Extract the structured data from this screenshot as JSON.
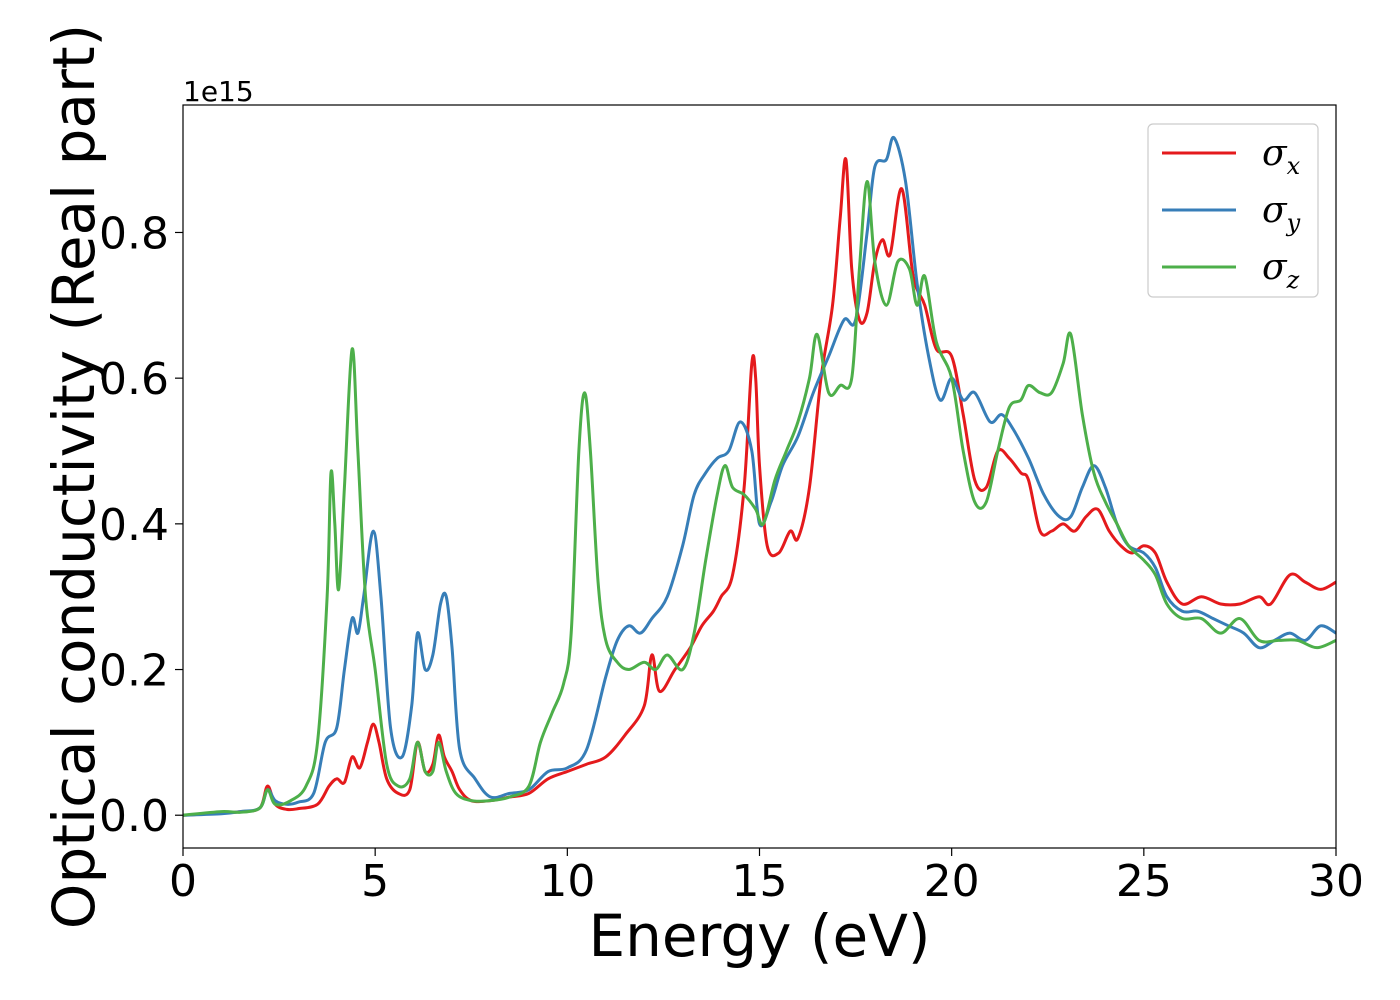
{
  "chart_data": {
    "type": "line",
    "xlabel": "Energy (eV)",
    "ylabel": "Optical conductivity (Real part)",
    "y_offset_label": "1e15",
    "y_multiplier": 1000000000000000.0,
    "xlim": [
      0,
      30
    ],
    "ylim": [
      -0.045,
      0.975
    ],
    "x_ticks": [
      0,
      5,
      10,
      15,
      20,
      25,
      30
    ],
    "y_ticks": [
      0.0,
      0.2,
      0.4,
      0.6,
      0.8
    ],
    "x_tick_labels": [
      "0",
      "5",
      "10",
      "15",
      "20",
      "25",
      "30"
    ],
    "y_tick_labels": [
      "0.0",
      "0.2",
      "0.4",
      "0.6",
      "0.8"
    ],
    "grid": false,
    "legend_position": "top-right",
    "series": [
      {
        "name": "σx",
        "symbol": "σ",
        "subscript": "x",
        "color": "#e41a1c",
        "points": [
          [
            0,
            0
          ],
          [
            1,
            0.003
          ],
          [
            1.5,
            0.005
          ],
          [
            2,
            0.01
          ],
          [
            2.2,
            0.04
          ],
          [
            2.4,
            0.015
          ],
          [
            2.7,
            0.008
          ],
          [
            3,
            0.009
          ],
          [
            3.5,
            0.015
          ],
          [
            3.8,
            0.04
          ],
          [
            4,
            0.05
          ],
          [
            4.2,
            0.045
          ],
          [
            4.4,
            0.08
          ],
          [
            4.6,
            0.065
          ],
          [
            4.8,
            0.1
          ],
          [
            4.95,
            0.125
          ],
          [
            5.1,
            0.1
          ],
          [
            5.3,
            0.05
          ],
          [
            5.6,
            0.03
          ],
          [
            5.9,
            0.035
          ],
          [
            6.1,
            0.1
          ],
          [
            6.3,
            0.06
          ],
          [
            6.5,
            0.07
          ],
          [
            6.65,
            0.11
          ],
          [
            6.8,
            0.08
          ],
          [
            7,
            0.06
          ],
          [
            7.2,
            0.035
          ],
          [
            7.5,
            0.02
          ],
          [
            8,
            0.02
          ],
          [
            8.5,
            0.025
          ],
          [
            9,
            0.03
          ],
          [
            9.5,
            0.05
          ],
          [
            10,
            0.06
          ],
          [
            10.5,
            0.07
          ],
          [
            11,
            0.08
          ],
          [
            11.5,
            0.11
          ],
          [
            12,
            0.15
          ],
          [
            12.2,
            0.22
          ],
          [
            12.4,
            0.17
          ],
          [
            12.8,
            0.2
          ],
          [
            13.2,
            0.23
          ],
          [
            13.5,
            0.26
          ],
          [
            13.8,
            0.28
          ],
          [
            14,
            0.3
          ],
          [
            14.3,
            0.33
          ],
          [
            14.6,
            0.45
          ],
          [
            14.8,
            0.62
          ],
          [
            14.9,
            0.6
          ],
          [
            15,
            0.48
          ],
          [
            15.2,
            0.37
          ],
          [
            15.5,
            0.36
          ],
          [
            15.8,
            0.39
          ],
          [
            16,
            0.38
          ],
          [
            16.3,
            0.45
          ],
          [
            16.6,
            0.6
          ],
          [
            16.9,
            0.7
          ],
          [
            17.1,
            0.82
          ],
          [
            17.25,
            0.9
          ],
          [
            17.4,
            0.75
          ],
          [
            17.6,
            0.68
          ],
          [
            17.8,
            0.69
          ],
          [
            18,
            0.76
          ],
          [
            18.2,
            0.79
          ],
          [
            18.4,
            0.77
          ],
          [
            18.7,
            0.86
          ],
          [
            19,
            0.74
          ],
          [
            19.3,
            0.7
          ],
          [
            19.6,
            0.64
          ],
          [
            20,
            0.63
          ],
          [
            20.3,
            0.55
          ],
          [
            20.6,
            0.46
          ],
          [
            20.9,
            0.45
          ],
          [
            21.2,
            0.5
          ],
          [
            21.5,
            0.49
          ],
          [
            21.8,
            0.47
          ],
          [
            22,
            0.46
          ],
          [
            22.3,
            0.39
          ],
          [
            22.6,
            0.39
          ],
          [
            22.9,
            0.4
          ],
          [
            23.2,
            0.39
          ],
          [
            23.5,
            0.41
          ],
          [
            23.8,
            0.42
          ],
          [
            24.1,
            0.39
          ],
          [
            24.4,
            0.37
          ],
          [
            24.7,
            0.36
          ],
          [
            25,
            0.37
          ],
          [
            25.3,
            0.36
          ],
          [
            25.6,
            0.32
          ],
          [
            26,
            0.29
          ],
          [
            26.5,
            0.3
          ],
          [
            27,
            0.29
          ],
          [
            27.5,
            0.29
          ],
          [
            28,
            0.3
          ],
          [
            28.3,
            0.29
          ],
          [
            28.8,
            0.33
          ],
          [
            29.2,
            0.32
          ],
          [
            29.6,
            0.31
          ],
          [
            30,
            0.32
          ]
        ]
      },
      {
        "name": "σy",
        "symbol": "σ",
        "subscript": "y",
        "color": "#377eb8",
        "points": [
          [
            0,
            0
          ],
          [
            1,
            0.002
          ],
          [
            1.5,
            0.005
          ],
          [
            2,
            0.01
          ],
          [
            2.2,
            0.035
          ],
          [
            2.4,
            0.02
          ],
          [
            2.7,
            0.015
          ],
          [
            3,
            0.018
          ],
          [
            3.4,
            0.03
          ],
          [
            3.7,
            0.1
          ],
          [
            4,
            0.12
          ],
          [
            4.2,
            0.2
          ],
          [
            4.4,
            0.27
          ],
          [
            4.55,
            0.25
          ],
          [
            4.7,
            0.3
          ],
          [
            4.95,
            0.39
          ],
          [
            5.15,
            0.3
          ],
          [
            5.4,
            0.12
          ],
          [
            5.7,
            0.08
          ],
          [
            5.95,
            0.15
          ],
          [
            6.1,
            0.25
          ],
          [
            6.3,
            0.2
          ],
          [
            6.5,
            0.22
          ],
          [
            6.7,
            0.29
          ],
          [
            6.85,
            0.3
          ],
          [
            7,
            0.23
          ],
          [
            7.2,
            0.09
          ],
          [
            7.6,
            0.05
          ],
          [
            8,
            0.025
          ],
          [
            8.5,
            0.03
          ],
          [
            9,
            0.035
          ],
          [
            9.5,
            0.06
          ],
          [
            10,
            0.065
          ],
          [
            10.5,
            0.09
          ],
          [
            11,
            0.19
          ],
          [
            11.3,
            0.24
          ],
          [
            11.6,
            0.26
          ],
          [
            11.9,
            0.25
          ],
          [
            12.2,
            0.27
          ],
          [
            12.6,
            0.3
          ],
          [
            13,
            0.37
          ],
          [
            13.3,
            0.44
          ],
          [
            13.6,
            0.47
          ],
          [
            13.9,
            0.49
          ],
          [
            14.2,
            0.5
          ],
          [
            14.5,
            0.54
          ],
          [
            14.8,
            0.5
          ],
          [
            15,
            0.4
          ],
          [
            15.3,
            0.43
          ],
          [
            15.6,
            0.48
          ],
          [
            16,
            0.52
          ],
          [
            16.4,
            0.58
          ],
          [
            16.8,
            0.63
          ],
          [
            17.2,
            0.68
          ],
          [
            17.5,
            0.68
          ],
          [
            17.8,
            0.8
          ],
          [
            18,
            0.89
          ],
          [
            18.3,
            0.9
          ],
          [
            18.5,
            0.93
          ],
          [
            18.8,
            0.87
          ],
          [
            19.1,
            0.73
          ],
          [
            19.4,
            0.63
          ],
          [
            19.7,
            0.57
          ],
          [
            20,
            0.6
          ],
          [
            20.3,
            0.57
          ],
          [
            20.6,
            0.58
          ],
          [
            21,
            0.54
          ],
          [
            21.3,
            0.55
          ],
          [
            21.6,
            0.53
          ],
          [
            22,
            0.49
          ],
          [
            22.4,
            0.44
          ],
          [
            22.8,
            0.41
          ],
          [
            23.1,
            0.41
          ],
          [
            23.4,
            0.45
          ],
          [
            23.7,
            0.48
          ],
          [
            24,
            0.45
          ],
          [
            24.3,
            0.4
          ],
          [
            24.6,
            0.37
          ],
          [
            25,
            0.36
          ],
          [
            25.3,
            0.34
          ],
          [
            25.6,
            0.3
          ],
          [
            26,
            0.28
          ],
          [
            26.4,
            0.28
          ],
          [
            26.8,
            0.27
          ],
          [
            27.2,
            0.26
          ],
          [
            27.6,
            0.25
          ],
          [
            28,
            0.23
          ],
          [
            28.4,
            0.24
          ],
          [
            28.8,
            0.25
          ],
          [
            29.2,
            0.24
          ],
          [
            29.6,
            0.26
          ],
          [
            30,
            0.25
          ]
        ]
      },
      {
        "name": "σz",
        "symbol": "σ",
        "subscript": "z",
        "color": "#4daf4a",
        "points": [
          [
            0,
            0
          ],
          [
            1,
            0.005
          ],
          [
            1.5,
            0.004
          ],
          [
            2,
            0.01
          ],
          [
            2.2,
            0.035
          ],
          [
            2.4,
            0.015
          ],
          [
            2.8,
            0.02
          ],
          [
            3.2,
            0.04
          ],
          [
            3.5,
            0.1
          ],
          [
            3.75,
            0.3
          ],
          [
            3.85,
            0.47
          ],
          [
            3.95,
            0.4
          ],
          [
            4.05,
            0.31
          ],
          [
            4.2,
            0.45
          ],
          [
            4.4,
            0.64
          ],
          [
            4.55,
            0.5
          ],
          [
            4.75,
            0.3
          ],
          [
            5,
            0.2
          ],
          [
            5.3,
            0.07
          ],
          [
            5.6,
            0.04
          ],
          [
            5.9,
            0.05
          ],
          [
            6.1,
            0.1
          ],
          [
            6.3,
            0.06
          ],
          [
            6.5,
            0.06
          ],
          [
            6.65,
            0.1
          ],
          [
            6.85,
            0.06
          ],
          [
            7.1,
            0.03
          ],
          [
            7.5,
            0.02
          ],
          [
            8,
            0.02
          ],
          [
            8.5,
            0.025
          ],
          [
            9,
            0.04
          ],
          [
            9.3,
            0.1
          ],
          [
            9.6,
            0.14
          ],
          [
            9.9,
            0.18
          ],
          [
            10.1,
            0.25
          ],
          [
            10.3,
            0.5
          ],
          [
            10.45,
            0.58
          ],
          [
            10.6,
            0.5
          ],
          [
            10.8,
            0.32
          ],
          [
            11,
            0.24
          ],
          [
            11.3,
            0.21
          ],
          [
            11.6,
            0.2
          ],
          [
            12,
            0.21
          ],
          [
            12.3,
            0.2
          ],
          [
            12.6,
            0.22
          ],
          [
            13,
            0.2
          ],
          [
            13.3,
            0.25
          ],
          [
            13.6,
            0.35
          ],
          [
            13.9,
            0.44
          ],
          [
            14.1,
            0.48
          ],
          [
            14.3,
            0.45
          ],
          [
            14.6,
            0.44
          ],
          [
            14.9,
            0.42
          ],
          [
            15.1,
            0.4
          ],
          [
            15.4,
            0.46
          ],
          [
            15.7,
            0.5
          ],
          [
            16,
            0.54
          ],
          [
            16.3,
            0.6
          ],
          [
            16.5,
            0.66
          ],
          [
            16.8,
            0.58
          ],
          [
            17.1,
            0.59
          ],
          [
            17.4,
            0.6
          ],
          [
            17.6,
            0.75
          ],
          [
            17.8,
            0.87
          ],
          [
            18,
            0.76
          ],
          [
            18.3,
            0.7
          ],
          [
            18.6,
            0.76
          ],
          [
            18.9,
            0.75
          ],
          [
            19.1,
            0.7
          ],
          [
            19.3,
            0.74
          ],
          [
            19.6,
            0.65
          ],
          [
            20,
            0.6
          ],
          [
            20.3,
            0.5
          ],
          [
            20.6,
            0.43
          ],
          [
            20.9,
            0.43
          ],
          [
            21.2,
            0.5
          ],
          [
            21.5,
            0.56
          ],
          [
            21.8,
            0.57
          ],
          [
            22,
            0.59
          ],
          [
            22.3,
            0.58
          ],
          [
            22.6,
            0.58
          ],
          [
            22.9,
            0.62
          ],
          [
            23.1,
            0.66
          ],
          [
            23.4,
            0.55
          ],
          [
            23.7,
            0.47
          ],
          [
            24,
            0.43
          ],
          [
            24.3,
            0.4
          ],
          [
            24.6,
            0.37
          ],
          [
            25,
            0.35
          ],
          [
            25.3,
            0.33
          ],
          [
            25.6,
            0.29
          ],
          [
            26,
            0.27
          ],
          [
            26.5,
            0.27
          ],
          [
            27,
            0.25
          ],
          [
            27.5,
            0.27
          ],
          [
            28,
            0.24
          ],
          [
            28.5,
            0.24
          ],
          [
            29,
            0.24
          ],
          [
            29.5,
            0.23
          ],
          [
            30,
            0.24
          ]
        ]
      }
    ]
  }
}
